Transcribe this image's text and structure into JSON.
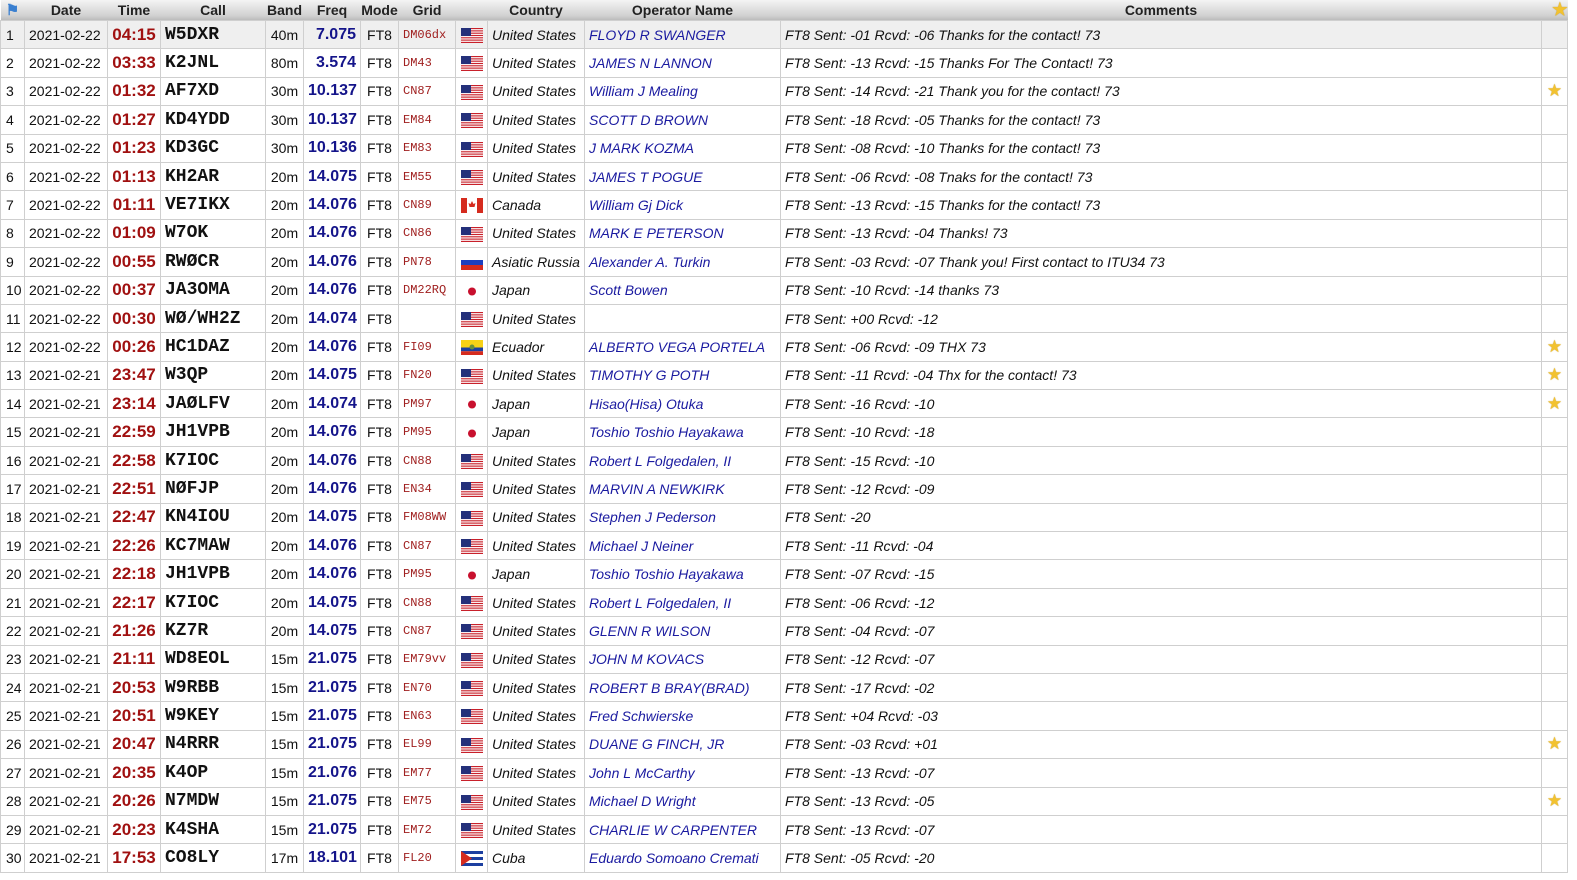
{
  "headers": {
    "date": "Date",
    "time": "Time",
    "call": "Call",
    "band": "Band",
    "freq": "Freq",
    "mode": "Mode",
    "grid": "Grid",
    "country": "Country",
    "operator": "Operator Name",
    "comments": "Comments"
  },
  "header_icons": {
    "left": "flag-icon",
    "right": "star-icon"
  },
  "colors": {
    "time": "#a01010",
    "freq": "#14148a",
    "grid": "#a02020",
    "operator": "#1a1aa0",
    "star": "#f2c230"
  },
  "rows": [
    [
      "1",
      "2021-02-22",
      "04:15",
      "W5DXR",
      "40m",
      "7.075",
      "FT8",
      "DM06dx",
      "us",
      "United States",
      "FLOYD R SWANGER",
      "FT8 Sent: -01 Rcvd: -06 Thanks for the contact! 73",
      false
    ],
    [
      "2",
      "2021-02-22",
      "03:33",
      "K2JNL",
      "80m",
      "3.574",
      "FT8",
      "DM43",
      "us",
      "United States",
      "JAMES N LANNON",
      "FT8 Sent: -13 Rcvd: -15 Thanks For The Contact! 73",
      false
    ],
    [
      "3",
      "2021-02-22",
      "01:32",
      "AF7XD",
      "30m",
      "10.137",
      "FT8",
      "CN87",
      "us",
      "United States",
      "William J Mealing",
      "FT8 Sent: -14 Rcvd: -21 Thank you for the contact! 73",
      true
    ],
    [
      "4",
      "2021-02-22",
      "01:27",
      "KD4YDD",
      "30m",
      "10.137",
      "FT8",
      "EM84",
      "us",
      "United States",
      "SCOTT D BROWN",
      "FT8 Sent: -18 Rcvd: -05 Thanks for the contact! 73",
      false
    ],
    [
      "5",
      "2021-02-22",
      "01:23",
      "KD3GC",
      "30m",
      "10.136",
      "FT8",
      "EM83",
      "us",
      "United States",
      "J MARK KOZMA",
      "FT8 Sent: -08 Rcvd: -10 Thanks for the contact! 73",
      false
    ],
    [
      "6",
      "2021-02-22",
      "01:13",
      "KH2AR",
      "20m",
      "14.075",
      "FT8",
      "EM55",
      "us",
      "United States",
      "JAMES T POGUE",
      "FT8 Sent: -06 Rcvd: -08 Tnaks for the contact! 73",
      false
    ],
    [
      "7",
      "2021-02-22",
      "01:11",
      "VE7IKX",
      "20m",
      "14.076",
      "FT8",
      "CN89",
      "ca",
      "Canada",
      "William Gj Dick",
      "FT8 Sent: -13 Rcvd: -15 Thanks for the contact! 73",
      false
    ],
    [
      "8",
      "2021-02-22",
      "01:09",
      "W7OK",
      "20m",
      "14.076",
      "FT8",
      "CN86",
      "us",
      "United States",
      "MARK E PETERSON",
      "FT8 Sent: -13 Rcvd: -04 Thanks! 73",
      false
    ],
    [
      "9",
      "2021-02-22",
      "00:55",
      "RWØCR",
      "20m",
      "14.076",
      "FT8",
      "PN78",
      "ru",
      "Asiatic Russia",
      "Alexander A. Turkin",
      "FT8 Sent: -03 Rcvd: -07 Thank you! First contact to ITU34 73",
      false
    ],
    [
      "10",
      "2021-02-22",
      "00:37",
      "JA3OMA",
      "20m",
      "14.076",
      "FT8",
      "DM22RQ",
      "jp",
      "Japan",
      "Scott Bowen",
      "FT8 Sent: -10 Rcvd: -14 thanks 73",
      false
    ],
    [
      "11",
      "2021-02-22",
      "00:30",
      "WØ/WH2Z",
      "20m",
      "14.074",
      "FT8",
      "",
      "us",
      "United States",
      "",
      "FT8 Sent: +00 Rcvd: -12",
      false
    ],
    [
      "12",
      "2021-02-22",
      "00:26",
      "HC1DAZ",
      "20m",
      "14.076",
      "FT8",
      "FI09",
      "ec",
      "Ecuador",
      "ALBERTO VEGA PORTELA",
      "FT8 Sent: -06 Rcvd: -09 THX 73",
      true
    ],
    [
      "13",
      "2021-02-21",
      "23:47",
      "W3QP",
      "20m",
      "14.075",
      "FT8",
      "FN20",
      "us",
      "United States",
      "TIMOTHY G POTH",
      "FT8 Sent: -11 Rcvd: -04 Thx for the contact! 73",
      true
    ],
    [
      "14",
      "2021-02-21",
      "23:14",
      "JAØLFV",
      "20m",
      "14.074",
      "FT8",
      "PM97",
      "jp",
      "Japan",
      "Hisao(Hisa) Otuka",
      "FT8 Sent: -16 Rcvd: -10",
      true
    ],
    [
      "15",
      "2021-02-21",
      "22:59",
      "JH1VPB",
      "20m",
      "14.076",
      "FT8",
      "PM95",
      "jp",
      "Japan",
      "Toshio Toshio Hayakawa",
      "FT8 Sent: -10 Rcvd: -18",
      false
    ],
    [
      "16",
      "2021-02-21",
      "22:58",
      "K7IOC",
      "20m",
      "14.076",
      "FT8",
      "CN88",
      "us",
      "United States",
      "Robert L Folgedalen, II",
      "FT8 Sent: -15 Rcvd: -10",
      false
    ],
    [
      "17",
      "2021-02-21",
      "22:51",
      "NØFJP",
      "20m",
      "14.076",
      "FT8",
      "EN34",
      "us",
      "United States",
      "MARVIN A NEWKIRK",
      "FT8 Sent: -12 Rcvd: -09",
      false
    ],
    [
      "18",
      "2021-02-21",
      "22:47",
      "KN4IOU",
      "20m",
      "14.075",
      "FT8",
      "FM08WW",
      "us",
      "United States",
      "Stephen J Pederson",
      "FT8 Sent: -20",
      false
    ],
    [
      "19",
      "2021-02-21",
      "22:26",
      "KC7MAW",
      "20m",
      "14.076",
      "FT8",
      "CN87",
      "us",
      "United States",
      "Michael J Neiner",
      "FT8 Sent: -11 Rcvd: -04",
      false
    ],
    [
      "20",
      "2021-02-21",
      "22:18",
      "JH1VPB",
      "20m",
      "14.076",
      "FT8",
      "PM95",
      "jp",
      "Japan",
      "Toshio Toshio Hayakawa",
      "FT8 Sent: -07 Rcvd: -15",
      false
    ],
    [
      "21",
      "2021-02-21",
      "22:17",
      "K7IOC",
      "20m",
      "14.075",
      "FT8",
      "CN88",
      "us",
      "United States",
      "Robert L Folgedalen, II",
      "FT8 Sent: -06 Rcvd: -12",
      false
    ],
    [
      "22",
      "2021-02-21",
      "21:26",
      "KZ7R",
      "20m",
      "14.075",
      "FT8",
      "CN87",
      "us",
      "United States",
      "GLENN R WILSON",
      "FT8 Sent: -04 Rcvd: -07",
      false
    ],
    [
      "23",
      "2021-02-21",
      "21:11",
      "WD8EOL",
      "15m",
      "21.075",
      "FT8",
      "EM79vv",
      "us",
      "United States",
      "JOHN M KOVACS",
      "FT8 Sent: -12 Rcvd: -07",
      false
    ],
    [
      "24",
      "2021-02-21",
      "20:53",
      "W9RBB",
      "15m",
      "21.075",
      "FT8",
      "EN70",
      "us",
      "United States",
      "ROBERT B BRAY(BRAD)",
      "FT8 Sent: -17 Rcvd: -02",
      false
    ],
    [
      "25",
      "2021-02-21",
      "20:51",
      "W9KEY",
      "15m",
      "21.075",
      "FT8",
      "EN63",
      "us",
      "United States",
      "Fred Schwierske",
      "FT8 Sent: +04 Rcvd: -03",
      false
    ],
    [
      "26",
      "2021-02-21",
      "20:47",
      "N4RRR",
      "15m",
      "21.075",
      "FT8",
      "EL99",
      "us",
      "United States",
      "DUANE G FINCH, JR",
      "FT8 Sent: -03 Rcvd: +01",
      true
    ],
    [
      "27",
      "2021-02-21",
      "20:35",
      "K4OP",
      "15m",
      "21.076",
      "FT8",
      "EM77",
      "us",
      "United States",
      "John L McCarthy",
      "FT8 Sent: -13 Rcvd: -07",
      false
    ],
    [
      "28",
      "2021-02-21",
      "20:26",
      "N7MDW",
      "15m",
      "21.075",
      "FT8",
      "EM75",
      "us",
      "United States",
      "Michael D Wright",
      "FT8 Sent: -13 Rcvd: -05",
      true
    ],
    [
      "29",
      "2021-02-21",
      "20:23",
      "K4SHA",
      "15m",
      "21.075",
      "FT8",
      "EM72",
      "us",
      "United States",
      "CHARLIE W CARPENTER",
      "FT8 Sent: -13 Rcvd: -07",
      false
    ],
    [
      "30",
      "2021-02-21",
      "17:53",
      "CO8LY",
      "17m",
      "18.101",
      "FT8",
      "FL20",
      "cu",
      "Cuba",
      "Eduardo Somoano Cremati",
      "FT8 Sent: -05 Rcvd: -20",
      false
    ]
  ]
}
